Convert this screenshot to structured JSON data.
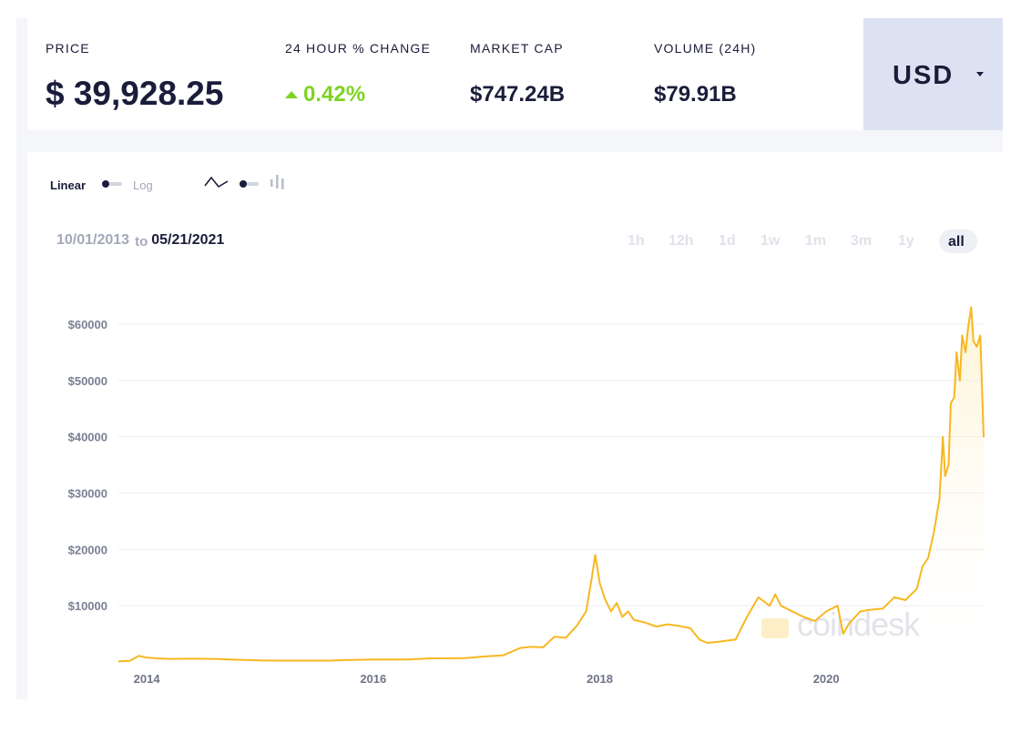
{
  "stats": {
    "price_label": "PRICE",
    "price_value": "$ 39,928.25",
    "change_label": "24 HOUR % CHANGE",
    "change_value": "0.42%",
    "market_cap_label": "MARKET CAP",
    "market_cap_value": "$747.24B",
    "volume_label": "VOLUME (24H)",
    "volume_value": "$79.91B"
  },
  "currency": {
    "label": "USD"
  },
  "controls": {
    "linear_label": "Linear",
    "log_label": "Log",
    "line_icon": "line-chart-icon",
    "bar_icon": "candlestick-icon"
  },
  "range": {
    "start": "10/01/2013",
    "to_word": "to",
    "end": "05/21/2021"
  },
  "periods": [
    "1h",
    "12h",
    "1d",
    "1w",
    "1m",
    "3m",
    "1y",
    "all"
  ],
  "active_period": "all",
  "watermark": "coindesk",
  "colors": {
    "line": "#f7b821",
    "accent_green": "#7ed321",
    "dark": "#1a1d3a",
    "currency_bg": "#dde2f3"
  },
  "chart_data": {
    "type": "area",
    "title": "",
    "xlabel": "",
    "ylabel": "",
    "xlim": [
      2013.75,
      2021.39
    ],
    "ylim": [
      0,
      65000
    ],
    "x_ticks": [
      2014,
      2016,
      2018,
      2020
    ],
    "x_tick_labels": [
      "2014",
      "2016",
      "2018",
      "2020"
    ],
    "y_ticks": [
      10000,
      20000,
      30000,
      40000,
      50000,
      60000
    ],
    "y_tick_labels": [
      "$10000",
      "$20000",
      "$30000",
      "$40000",
      "$50000",
      "$60000"
    ],
    "grid": true,
    "series": [
      {
        "x": [
          2013.75,
          2013.85,
          2013.93,
          2014.0,
          2014.1,
          2014.2,
          2014.4,
          2014.6,
          2014.8,
          2015.0,
          2015.2,
          2015.4,
          2015.6,
          2015.8,
          2016.0,
          2016.3,
          2016.5,
          2016.8,
          2017.0,
          2017.15,
          2017.3,
          2017.4,
          2017.5,
          2017.6,
          2017.7,
          2017.8,
          2017.88,
          2017.93,
          2017.96,
          2018.0,
          2018.05,
          2018.1,
          2018.15,
          2018.2,
          2018.25,
          2018.3,
          2018.4,
          2018.5,
          2018.6,
          2018.7,
          2018.8,
          2018.88,
          2018.95,
          2019.05,
          2019.2,
          2019.3,
          2019.4,
          2019.5,
          2019.55,
          2019.6,
          2019.7,
          2019.8,
          2019.9,
          2020.0,
          2020.1,
          2020.15,
          2020.2,
          2020.3,
          2020.4,
          2020.5,
          2020.6,
          2020.7,
          2020.8,
          2020.85,
          2020.9,
          2020.95,
          2021.0,
          2021.03,
          2021.05,
          2021.08,
          2021.1,
          2021.13,
          2021.15,
          2021.18,
          2021.2,
          2021.23,
          2021.25,
          2021.28,
          2021.3,
          2021.33,
          2021.36,
          2021.39
        ],
        "y": [
          130,
          200,
          1100,
          800,
          650,
          550,
          600,
          550,
          400,
          280,
          250,
          240,
          250,
          370,
          430,
          450,
          650,
          700,
          1000,
          1200,
          2500,
          2700,
          2600,
          4500,
          4300,
          6500,
          9000,
          15000,
          19000,
          14000,
          11000,
          9000,
          10500,
          8000,
          9000,
          7500,
          7000,
          6300,
          6700,
          6400,
          6000,
          4000,
          3400,
          3600,
          4000,
          8000,
          11500,
          10000,
          12000,
          10000,
          9000,
          8000,
          7300,
          9000,
          10000,
          5000,
          6800,
          9000,
          9300,
          9500,
          11500,
          11000,
          13000,
          17000,
          18500,
          23000,
          29000,
          40000,
          33000,
          35000,
          46000,
          47000,
          55000,
          50000,
          58000,
          55000,
          59000,
          63000,
          57000,
          56000,
          58000,
          39928
        ]
      }
    ]
  }
}
